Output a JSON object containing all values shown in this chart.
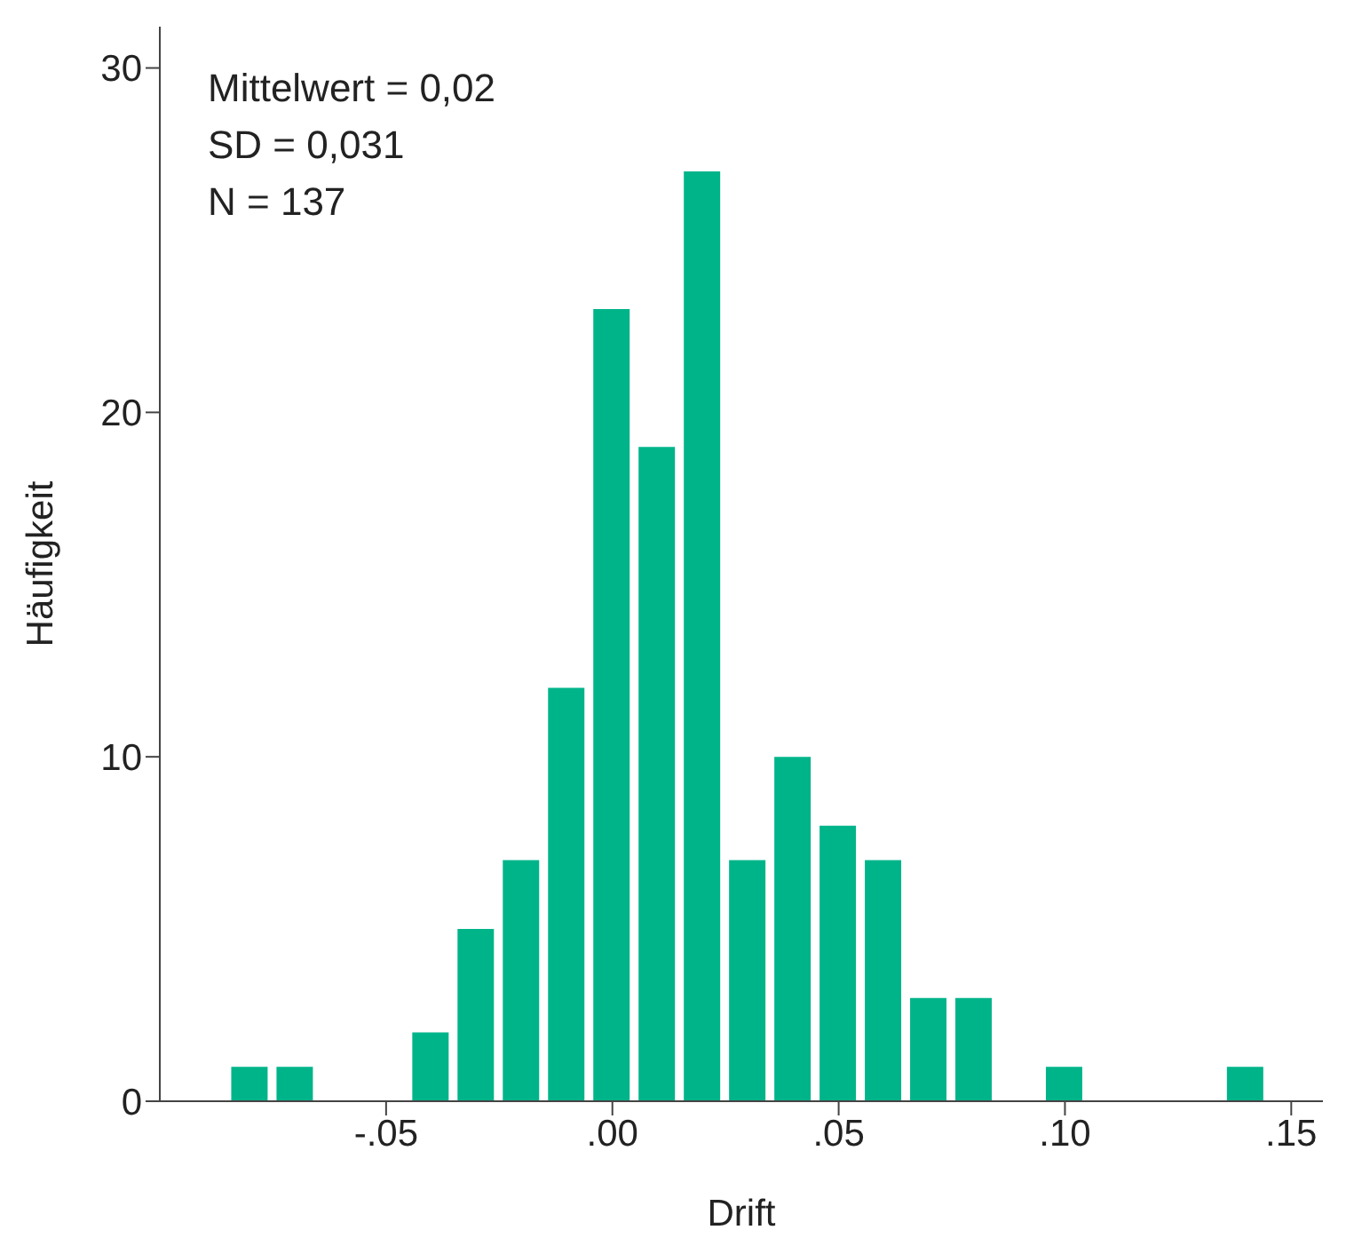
{
  "chart_data": {
    "type": "histogram",
    "xlabel": "Drift",
    "ylabel": "Häufigkeit",
    "annotations": [
      "Mittelwert = 0,02",
      "SD = 0,031",
      "N = 137"
    ],
    "bins": [
      -0.085,
      -0.075,
      -0.065,
      -0.055,
      -0.045,
      -0.035,
      -0.025,
      -0.015,
      -0.005,
      0.005,
      0.015,
      0.025,
      0.035,
      0.045,
      0.055,
      0.065,
      0.075,
      0.085,
      0.095,
      0.105,
      0.115,
      0.125,
      0.135,
      0.145
    ],
    "values": [
      1,
      1,
      0,
      0,
      2,
      5,
      7,
      12,
      23,
      19,
      27,
      7,
      10,
      8,
      7,
      3,
      3,
      0,
      1,
      0,
      0,
      0,
      1
    ],
    "color": "#00b48a",
    "xlim": [
      -0.1,
      0.157
    ],
    "xticks": [
      {
        "value": -0.05,
        "label": "-.05"
      },
      {
        "value": 0,
        "label": ".00"
      },
      {
        "value": 0.05,
        "label": ".05"
      },
      {
        "value": 0.1,
        "label": ".10"
      },
      {
        "value": 0.15,
        "label": ".15"
      }
    ],
    "ylim": [
      0,
      31.2
    ],
    "yticks": [
      0,
      10,
      20,
      30
    ],
    "grid": false,
    "legend": false
  }
}
